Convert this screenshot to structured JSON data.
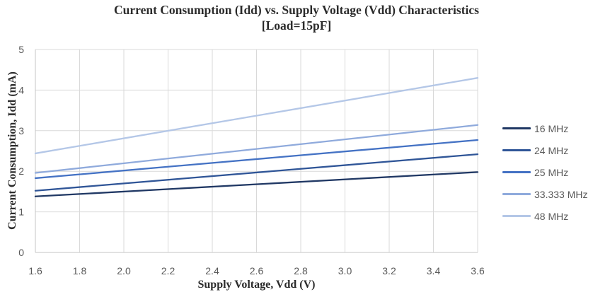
{
  "title": {
    "line1": "Current Consumption (Idd) vs. Supply Voltage (Vdd) Characteristics",
    "line2": "[Load=15pF]"
  },
  "chart_data": {
    "type": "line",
    "x": [
      1.6,
      3.6
    ],
    "series": [
      {
        "name": "16 MHz",
        "values": [
          1.38,
          1.98
        ],
        "color": "#203864"
      },
      {
        "name": "24 MHz",
        "values": [
          1.52,
          2.42
        ],
        "color": "#2F5597"
      },
      {
        "name": "25 MHz",
        "values": [
          1.83,
          2.77
        ],
        "color": "#4472C4"
      },
      {
        "name": "33.333 MHz",
        "values": [
          1.96,
          3.14
        ],
        "color": "#8FAADC"
      },
      {
        "name": "48 MHz",
        "values": [
          2.44,
          4.3
        ],
        "color": "#B4C7E7"
      }
    ],
    "xlabel": "Supply Voltage, Vdd (V)",
    "ylabel": "Current Consumption, Idd (mA)",
    "xlim": [
      1.6,
      3.6
    ],
    "ylim": [
      0,
      5
    ],
    "x_tick_labels": [
      "1.6",
      "1.8",
      "2.0",
      "2.2",
      "2.4",
      "2.6",
      "2.8",
      "3.0",
      "3.2",
      "3.4",
      "3.6"
    ],
    "y_tick_labels": [
      "0",
      "1",
      "2",
      "3",
      "4",
      "5"
    ],
    "grid": true,
    "legend_position": "right"
  },
  "style": {
    "grid_color": "#D9D9D9",
    "axis_color": "#C6C6C6",
    "tick_text_color": "#595959",
    "line_width": 2.3,
    "background": "#FFFFFF"
  }
}
